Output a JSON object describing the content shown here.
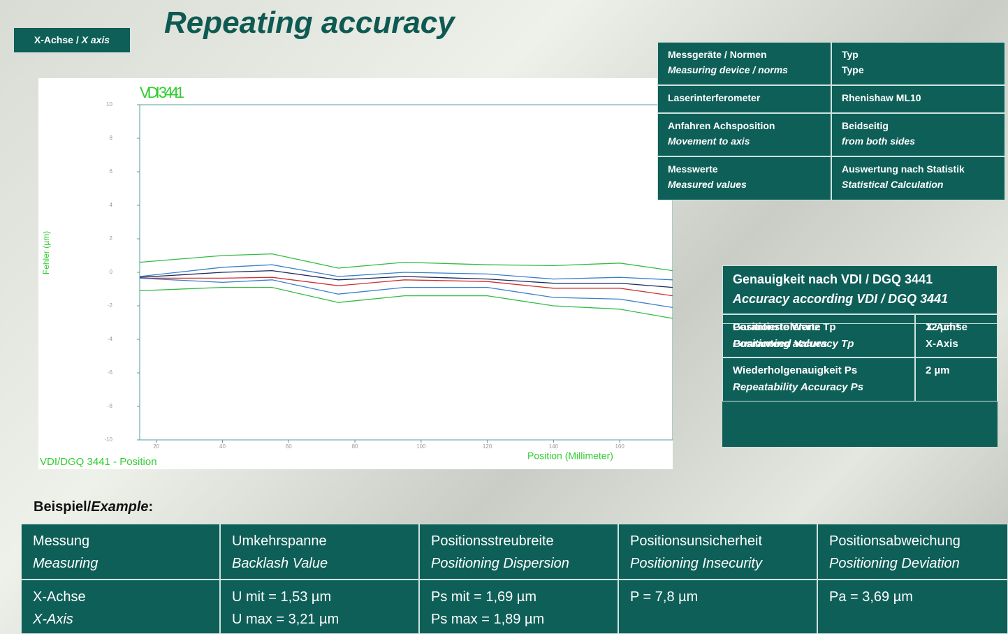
{
  "title": "Repeating accuracy",
  "badge": {
    "de": "X-Achse /",
    "en": "X axis"
  },
  "chart_data": {
    "type": "line",
    "title": "VDI 3441",
    "ylabel": "Fehler (µm)",
    "xlabel": "Position (Millimeter)",
    "footer": "VDI/DGQ 3441 - Position",
    "x": [
      15,
      40,
      55,
      75,
      95,
      120,
      140,
      160,
      176
    ],
    "series": [
      {
        "color": "#33bb44",
        "values": [
          0.6,
          1.0,
          1.1,
          0.25,
          0.6,
          0.45,
          0.4,
          0.55,
          0.1
        ]
      },
      {
        "color": "#3a7fc8",
        "values": [
          -0.25,
          0.3,
          0.45,
          -0.25,
          0,
          -0.1,
          -0.4,
          -0.3,
          -0.45
        ]
      },
      {
        "color": "#1a2a5a",
        "values": [
          -0.3,
          0,
          0.1,
          -0.45,
          -0.25,
          -0.4,
          -0.65,
          -0.65,
          -0.9
        ]
      },
      {
        "color": "#cc3333",
        "values": [
          -0.35,
          -0.35,
          -0.3,
          -0.8,
          -0.45,
          -0.55,
          -0.95,
          -0.95,
          -1.4
        ]
      },
      {
        "color": "#3a7fc8",
        "values": [
          -0.35,
          -0.6,
          -0.45,
          -1.3,
          -0.9,
          -0.9,
          -1.5,
          -1.6,
          -2.1
        ]
      },
      {
        "color": "#33bb44",
        "values": [
          -1.1,
          -0.9,
          -0.9,
          -1.8,
          -1.4,
          -1.4,
          -2.0,
          -2.2,
          -2.75
        ]
      }
    ],
    "xlim": [
      15,
      176
    ],
    "ylim": [
      -10,
      10
    ],
    "xticks": [
      20,
      40,
      60,
      80,
      100,
      120,
      140,
      160
    ],
    "yticks": [
      10,
      8,
      6,
      4,
      2,
      0,
      -2,
      -4,
      -6,
      -8,
      -10
    ],
    "grid": false
  },
  "device_table": {
    "rows": [
      [
        [
          "Messgeräte / Normen",
          "Measuring device / norms"
        ],
        [
          "Typ",
          "Type"
        ]
      ],
      [
        [
          "Laserinterferometer"
        ],
        [
          "Rhenishaw ML10"
        ]
      ],
      [
        [
          "Anfahren Achsposition",
          "Movement to axis"
        ],
        [
          "Beidseitig",
          "from both sides"
        ]
      ],
      [
        [
          "Messwerte",
          "Measured values"
        ],
        [
          "Auswertung nach Statistik",
          "Statistical Calculation"
        ]
      ]
    ]
  },
  "accuracy_table": {
    "header": [
      "Genauigkeit nach VDI / DGQ 3441",
      "Accuracy according VDI / DGQ 3441"
    ],
    "rows": [
      [
        [
          "Garantierte Werte",
          "Guaranteed Values"
        ],
        [
          "X-Achse",
          "X-Axis"
        ]
      ],
      [
        [
          "Positionstoleranz Tp",
          "Positioning accuracy Tp"
        ],
        [
          "12 µm*"
        ]
      ],
      [
        [
          "Wiederholgenauigkeit Ps",
          "Repeatability Accuracy Ps"
        ],
        [
          "2 µm"
        ]
      ]
    ]
  },
  "example_label": {
    "de": "Beispiel/",
    "en": "Example",
    "colon": ":"
  },
  "example_table": {
    "rows": [
      [
        [
          "Messung",
          "Measuring"
        ],
        [
          "Umkehrspanne",
          "Backlash Value"
        ],
        [
          "Positionsstreubreite",
          "Positioning Dispersion"
        ],
        [
          "Positionsunsicherheit",
          "Positioning Insecurity"
        ],
        [
          "Positionsabweichung",
          "Positioning Deviation"
        ]
      ],
      [
        [
          "X-Achse",
          "X-Axis"
        ],
        [
          "U mit = 1,53 µm",
          "U max = 3,21 µm"
        ],
        [
          "Ps mit = 1,69 µm",
          "Ps max = 1,89 µm"
        ],
        [
          "P = 7,8 µm"
        ],
        [
          "Pa = 3,69 µm"
        ]
      ]
    ]
  }
}
